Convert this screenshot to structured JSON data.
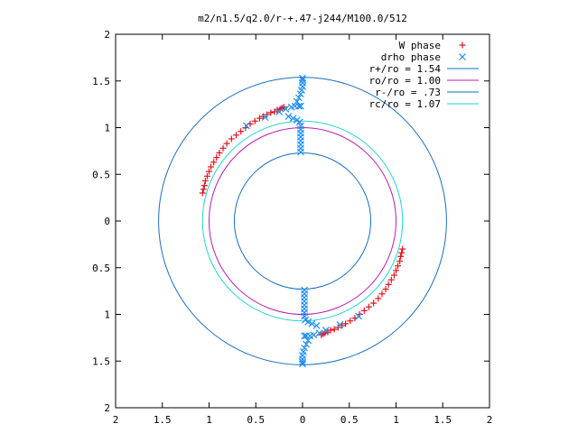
{
  "chart_data": {
    "type": "scatter",
    "title": "m2/n1.5/q2.0/r-+.47-j244/M100.0/512",
    "xlabel": "",
    "ylabel": "",
    "xlim": [
      -2,
      2
    ],
    "ylim": [
      -2,
      2
    ],
    "grid": false,
    "legend_position": "top-right",
    "x_ticks": [
      "2",
      "1.5",
      "1",
      "0.5",
      "0",
      "0.5",
      "1",
      "1.5",
      "2"
    ],
    "y_ticks": [
      "2",
      "1.5",
      "1",
      "0.5",
      "0",
      "0.5",
      "1",
      "1.5",
      "2"
    ],
    "circles": [
      {
        "label": "r+/ro = 1.54",
        "radius": 1.54,
        "color": "#1a6ebf"
      },
      {
        "label": "ro/ro = 1.00",
        "radius": 1.0,
        "color": "#b41fb4"
      },
      {
        "label": "r-/ro = .73",
        "radius": 0.73,
        "color": "#1a6ebf"
      },
      {
        "label": "rc/ro = 1.07",
        "radius": 1.07,
        "color": "#22d3d3"
      }
    ],
    "series": [
      {
        "name": "W phase",
        "marker": "plus",
        "color": "#e0141e",
        "points": [
          [
            -1.07,
            0.3
          ],
          [
            -1.06,
            0.34
          ],
          [
            -1.05,
            0.38
          ],
          [
            -1.04,
            0.43
          ],
          [
            -1.02,
            0.48
          ],
          [
            -1.0,
            0.53
          ],
          [
            -0.98,
            0.58
          ],
          [
            -0.95,
            0.63
          ],
          [
            -0.92,
            0.68
          ],
          [
            -0.89,
            0.73
          ],
          [
            -0.85,
            0.78
          ],
          [
            -0.81,
            0.83
          ],
          [
            -0.76,
            0.88
          ],
          [
            -0.71,
            0.92
          ],
          [
            -0.66,
            0.96
          ],
          [
            -0.61,
            1.0
          ],
          [
            -0.56,
            1.04
          ],
          [
            -0.51,
            1.07
          ],
          [
            -0.46,
            1.1
          ],
          [
            -0.42,
            1.12
          ],
          [
            -0.38,
            1.14
          ],
          [
            -0.34,
            1.16
          ],
          [
            -0.3,
            1.17
          ],
          [
            -0.27,
            1.19
          ],
          [
            -0.24,
            1.2
          ],
          [
            -0.22,
            1.21
          ],
          [
            -0.2,
            1.22
          ],
          [
            1.07,
            -0.3
          ],
          [
            1.06,
            -0.34
          ],
          [
            1.05,
            -0.38
          ],
          [
            1.04,
            -0.43
          ],
          [
            1.02,
            -0.48
          ],
          [
            1.0,
            -0.53
          ],
          [
            0.98,
            -0.58
          ],
          [
            0.95,
            -0.63
          ],
          [
            0.92,
            -0.68
          ],
          [
            0.89,
            -0.73
          ],
          [
            0.85,
            -0.78
          ],
          [
            0.81,
            -0.83
          ],
          [
            0.76,
            -0.88
          ],
          [
            0.71,
            -0.92
          ],
          [
            0.66,
            -0.96
          ],
          [
            0.61,
            -1.0
          ],
          [
            0.56,
            -1.04
          ],
          [
            0.51,
            -1.07
          ],
          [
            0.46,
            -1.1
          ],
          [
            0.42,
            -1.12
          ],
          [
            0.38,
            -1.14
          ],
          [
            0.34,
            -1.16
          ],
          [
            0.3,
            -1.17
          ],
          [
            0.27,
            -1.19
          ],
          [
            0.24,
            -1.2
          ],
          [
            0.22,
            -1.21
          ],
          [
            0.2,
            -1.22
          ]
        ]
      },
      {
        "name": "drho phase",
        "marker": "cross",
        "color": "#1e8ef0",
        "points": [
          [
            -0.6,
            1.02
          ],
          [
            -0.4,
            1.11
          ],
          [
            -0.25,
            1.17
          ],
          [
            -0.18,
            1.2
          ],
          [
            -0.12,
            1.22
          ],
          [
            -0.08,
            1.23
          ],
          [
            -0.04,
            1.23
          ],
          [
            -0.02,
            1.23
          ],
          [
            -0.15,
            1.12
          ],
          [
            -0.1,
            1.1
          ],
          [
            -0.06,
            1.08
          ],
          [
            -0.03,
            1.06
          ],
          [
            -0.06,
            1.28
          ],
          [
            -0.04,
            1.32
          ],
          [
            -0.02,
            1.36
          ],
          [
            -0.01,
            1.4
          ],
          [
            0.0,
            1.44
          ],
          [
            0.0,
            1.48
          ],
          [
            0.0,
            1.51
          ],
          [
            0.0,
            1.53
          ],
          [
            -0.02,
            1.02
          ],
          [
            -0.02,
            0.98
          ],
          [
            -0.02,
            0.94
          ],
          [
            -0.02,
            0.9
          ],
          [
            -0.02,
            0.86
          ],
          [
            -0.02,
            0.82
          ],
          [
            -0.02,
            0.78
          ],
          [
            -0.02,
            0.74
          ],
          [
            0.6,
            -1.02
          ],
          [
            0.4,
            -1.11
          ],
          [
            0.25,
            -1.17
          ],
          [
            0.18,
            -1.2
          ],
          [
            0.12,
            -1.22
          ],
          [
            0.08,
            -1.23
          ],
          [
            0.04,
            -1.23
          ],
          [
            0.02,
            -1.23
          ],
          [
            0.15,
            -1.12
          ],
          [
            0.1,
            -1.1
          ],
          [
            0.06,
            -1.08
          ],
          [
            0.03,
            -1.06
          ],
          [
            0.06,
            -1.28
          ],
          [
            0.04,
            -1.32
          ],
          [
            0.02,
            -1.36
          ],
          [
            0.01,
            -1.4
          ],
          [
            0.0,
            -1.44
          ],
          [
            0.0,
            -1.48
          ],
          [
            0.0,
            -1.51
          ],
          [
            0.0,
            -1.53
          ],
          [
            0.02,
            -1.02
          ],
          [
            0.02,
            -0.98
          ],
          [
            0.02,
            -0.94
          ],
          [
            0.02,
            -0.9
          ],
          [
            0.02,
            -0.86
          ],
          [
            0.02,
            -0.82
          ],
          [
            0.02,
            -0.78
          ],
          [
            0.02,
            -0.74
          ]
        ]
      }
    ]
  }
}
